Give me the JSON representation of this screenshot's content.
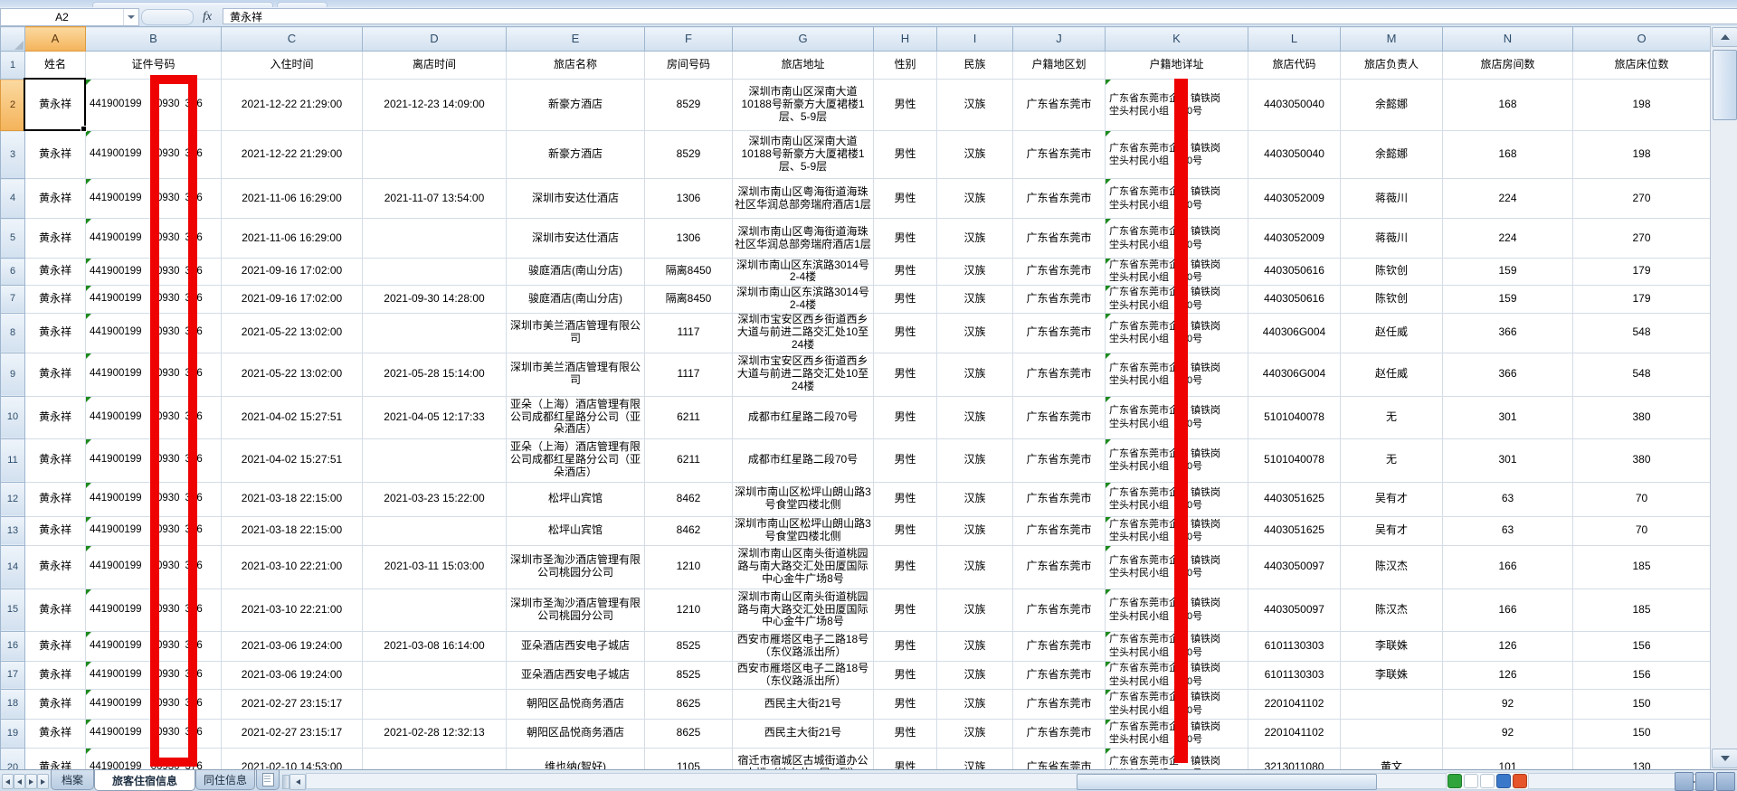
{
  "chrome": {
    "name_box": "A2",
    "fx_label": "fx",
    "formula_content": "黄永祥"
  },
  "grid": {
    "column_letters": [
      "A",
      "B",
      "C",
      "D",
      "E",
      "F",
      "G",
      "H",
      "I",
      "J",
      "K",
      "L",
      "M",
      "N",
      "O"
    ],
    "header_labels": [
      "姓名",
      "证件号码",
      "入住时间",
      "离店时间",
      "旅店名称",
      "房间号码",
      "旅店地址",
      "性别",
      "民族",
      "户籍地区划",
      "户籍地详址",
      "旅店代码",
      "旅店负责人",
      "旅店房间数",
      "旅店床位数"
    ],
    "row1_number": "1",
    "common": {
      "name": "黄永祥",
      "id_segments": [
        "441900199",
        "00930",
        "376"
      ],
      "gender": "男性",
      "ethnicity": "汉族",
      "region": "广东省东莞市",
      "hukou_line1": [
        "广东省东莞市企",
        "镇铁岗"
      ],
      "hukou_line2": [
        "坣头村民小组",
        "0号"
      ]
    },
    "rows": [
      {
        "n": 2,
        "checkin": "2021-12-22 21:29:00",
        "checkout": "2021-12-23 14:09:00",
        "hotel": "新豪方酒店",
        "room": "8529",
        "hotel_addr": "深圳市南山区深南大道10188号新豪方大厦裙楼1层、5-9层",
        "hotel_code": "4403050040",
        "manager": "余懿娜",
        "rooms": "168",
        "beds": "198"
      },
      {
        "n": 3,
        "checkin": "2021-12-22 21:29:00",
        "checkout": "",
        "hotel": "新豪方酒店",
        "room": "8529",
        "hotel_addr": "深圳市南山区深南大道10188号新豪方大厦裙楼1层、5-9层",
        "hotel_code": "4403050040",
        "manager": "余懿娜",
        "rooms": "168",
        "beds": "198"
      },
      {
        "n": 4,
        "checkin": "2021-11-06 16:29:00",
        "checkout": "2021-11-07 13:54:00",
        "hotel": "深圳市安达仕酒店",
        "room": "1306",
        "hotel_addr": "深圳市南山区粤海街道海珠社区华润总部旁瑞府酒店1层",
        "hotel_code": "4403052009",
        "manager": "蒋薇川",
        "rooms": "224",
        "beds": "270"
      },
      {
        "n": 5,
        "checkin": "2021-11-06 16:29:00",
        "checkout": "",
        "hotel": "深圳市安达仕酒店",
        "room": "1306",
        "hotel_addr": "深圳市南山区粤海街道海珠社区华润总部旁瑞府酒店1层",
        "hotel_code": "4403052009",
        "manager": "蒋薇川",
        "rooms": "224",
        "beds": "270"
      },
      {
        "n": 6,
        "checkin": "2021-09-16 17:02:00",
        "checkout": "",
        "hotel": "骏庭酒店(南山分店)",
        "room": "隔离8450",
        "hotel_addr": "深圳市南山区东滨路3014号2-4楼",
        "hotel_code": "4403050616",
        "manager": "陈钦创",
        "rooms": "159",
        "beds": "179"
      },
      {
        "n": 7,
        "checkin": "2021-09-16 17:02:00",
        "checkout": "2021-09-30 14:28:00",
        "hotel": "骏庭酒店(南山分店)",
        "room": "隔离8450",
        "hotel_addr": "深圳市南山区东滨路3014号2-4楼",
        "hotel_code": "4403050616",
        "manager": "陈钦创",
        "rooms": "159",
        "beds": "179"
      },
      {
        "n": 8,
        "checkin": "2021-05-22 13:02:00",
        "checkout": "",
        "hotel": "深圳市美兰酒店管理有限公司",
        "room": "1117",
        "hotel_addr": "深圳市宝安区西乡街道西乡大道与前进二路交汇处10至24楼",
        "hotel_code": "440306G004",
        "manager": "赵任威",
        "rooms": "366",
        "beds": "548"
      },
      {
        "n": 9,
        "checkin": "2021-05-22 13:02:00",
        "checkout": "2021-05-28 15:14:00",
        "hotel": "深圳市美兰酒店管理有限公司",
        "room": "1117",
        "hotel_addr": "深圳市宝安区西乡街道西乡大道与前进二路交汇处10至24楼",
        "hotel_code": "440306G004",
        "manager": "赵任威",
        "rooms": "366",
        "beds": "548"
      },
      {
        "n": 10,
        "checkin": "2021-04-02 15:27:51",
        "checkout": "2021-04-05 12:17:33",
        "hotel": "亚朵（上海）酒店管理有限公司成都红星路分公司（亚朵酒店）",
        "room": "6211",
        "hotel_addr": "成都市红星路二段70号",
        "hotel_code": "5101040078",
        "manager": "无",
        "rooms": "301",
        "beds": "380"
      },
      {
        "n": 11,
        "checkin": "2021-04-02 15:27:51",
        "checkout": "",
        "hotel": "亚朵（上海）酒店管理有限公司成都红星路分公司（亚朵酒店）",
        "room": "6211",
        "hotel_addr": "成都市红星路二段70号",
        "hotel_code": "5101040078",
        "manager": "无",
        "rooms": "301",
        "beds": "380"
      },
      {
        "n": 12,
        "checkin": "2021-03-18 22:15:00",
        "checkout": "2021-03-23 15:22:00",
        "hotel": "松坪山宾馆",
        "room": "8462",
        "hotel_addr": "深圳市南山区松坪山朗山路3号食堂四楼北侧",
        "hotel_code": "4403051625",
        "manager": "吴有才",
        "rooms": "63",
        "beds": "70"
      },
      {
        "n": 13,
        "checkin": "2021-03-18 22:15:00",
        "checkout": "",
        "hotel": "松坪山宾馆",
        "room": "8462",
        "hotel_addr": "深圳市南山区松坪山朗山路3号食堂四楼北侧",
        "hotel_code": "4403051625",
        "manager": "吴有才",
        "rooms": "63",
        "beds": "70"
      },
      {
        "n": 14,
        "checkin": "2021-03-10 22:21:00",
        "checkout": "2021-03-11 15:03:00",
        "hotel": "深圳市圣淘沙酒店管理有限公司桃园分公司",
        "room": "1210",
        "hotel_addr": "深圳市南山区南头街道桃园路与南大路交汇处田厦国际中心金牛广场8号",
        "hotel_code": "4403050097",
        "manager": "陈汉杰",
        "rooms": "166",
        "beds": "185"
      },
      {
        "n": 15,
        "checkin": "2021-03-10 22:21:00",
        "checkout": "",
        "hotel": "深圳市圣淘沙酒店管理有限公司桃园分公司",
        "room": "1210",
        "hotel_addr": "深圳市南山区南头街道桃园路与南大路交汇处田厦国际中心金牛广场8号",
        "hotel_code": "4403050097",
        "manager": "陈汉杰",
        "rooms": "166",
        "beds": "185"
      },
      {
        "n": 16,
        "checkin": "2021-03-06 19:24:00",
        "checkout": "2021-03-08 16:14:00",
        "hotel": "亚朵酒店西安电子城店",
        "room": "8525",
        "hotel_addr": "西安市雁塔区电子二路18号（东仪路派出所）",
        "hotel_code": "6101130303",
        "manager": "李联姝",
        "rooms": "126",
        "beds": "156"
      },
      {
        "n": 17,
        "checkin": "2021-03-06 19:24:00",
        "checkout": "",
        "hotel": "亚朵酒店西安电子城店",
        "room": "8525",
        "hotel_addr": "西安市雁塔区电子二路18号（东仪路派出所）",
        "hotel_code": "6101130303",
        "manager": "李联姝",
        "rooms": "126",
        "beds": "156"
      },
      {
        "n": 18,
        "checkin": "2021-02-27 23:15:17",
        "checkout": "",
        "hotel": "朝阳区品悦商务酒店",
        "room": "8625",
        "hotel_addr": "西民主大街21号",
        "hotel_code": "2201041102",
        "manager": "",
        "rooms": "92",
        "beds": "150"
      },
      {
        "n": 19,
        "checkin": "2021-02-27 23:15:17",
        "checkout": "2021-02-28 12:32:13",
        "hotel": "朝阳区品悦商务酒店",
        "room": "8625",
        "hotel_addr": "西民主大街21号",
        "hotel_code": "2201041102",
        "manager": "",
        "rooms": "92",
        "beds": "150"
      },
      {
        "n": 20,
        "checkin": "2021-02-10 14:53:00",
        "checkout": "",
        "hotel": "维也纳(智好)",
        "room": "1105",
        "hotel_addr": "宿迁市宿城区古城街道办公大楼（地上共...层...到）",
        "hotel_code": "3213011080",
        "manager": "黄文",
        "rooms": "101",
        "beds": "130"
      }
    ]
  },
  "tabs": {
    "items": [
      "档案",
      "旅客住宿信息",
      "同住信息"
    ],
    "active": "旅客住宿信息"
  },
  "colors": {
    "annotation_red": "#ee0202",
    "error_indicator_green": "#1d8a1d",
    "selected_header_orange": "#f4b35a"
  }
}
